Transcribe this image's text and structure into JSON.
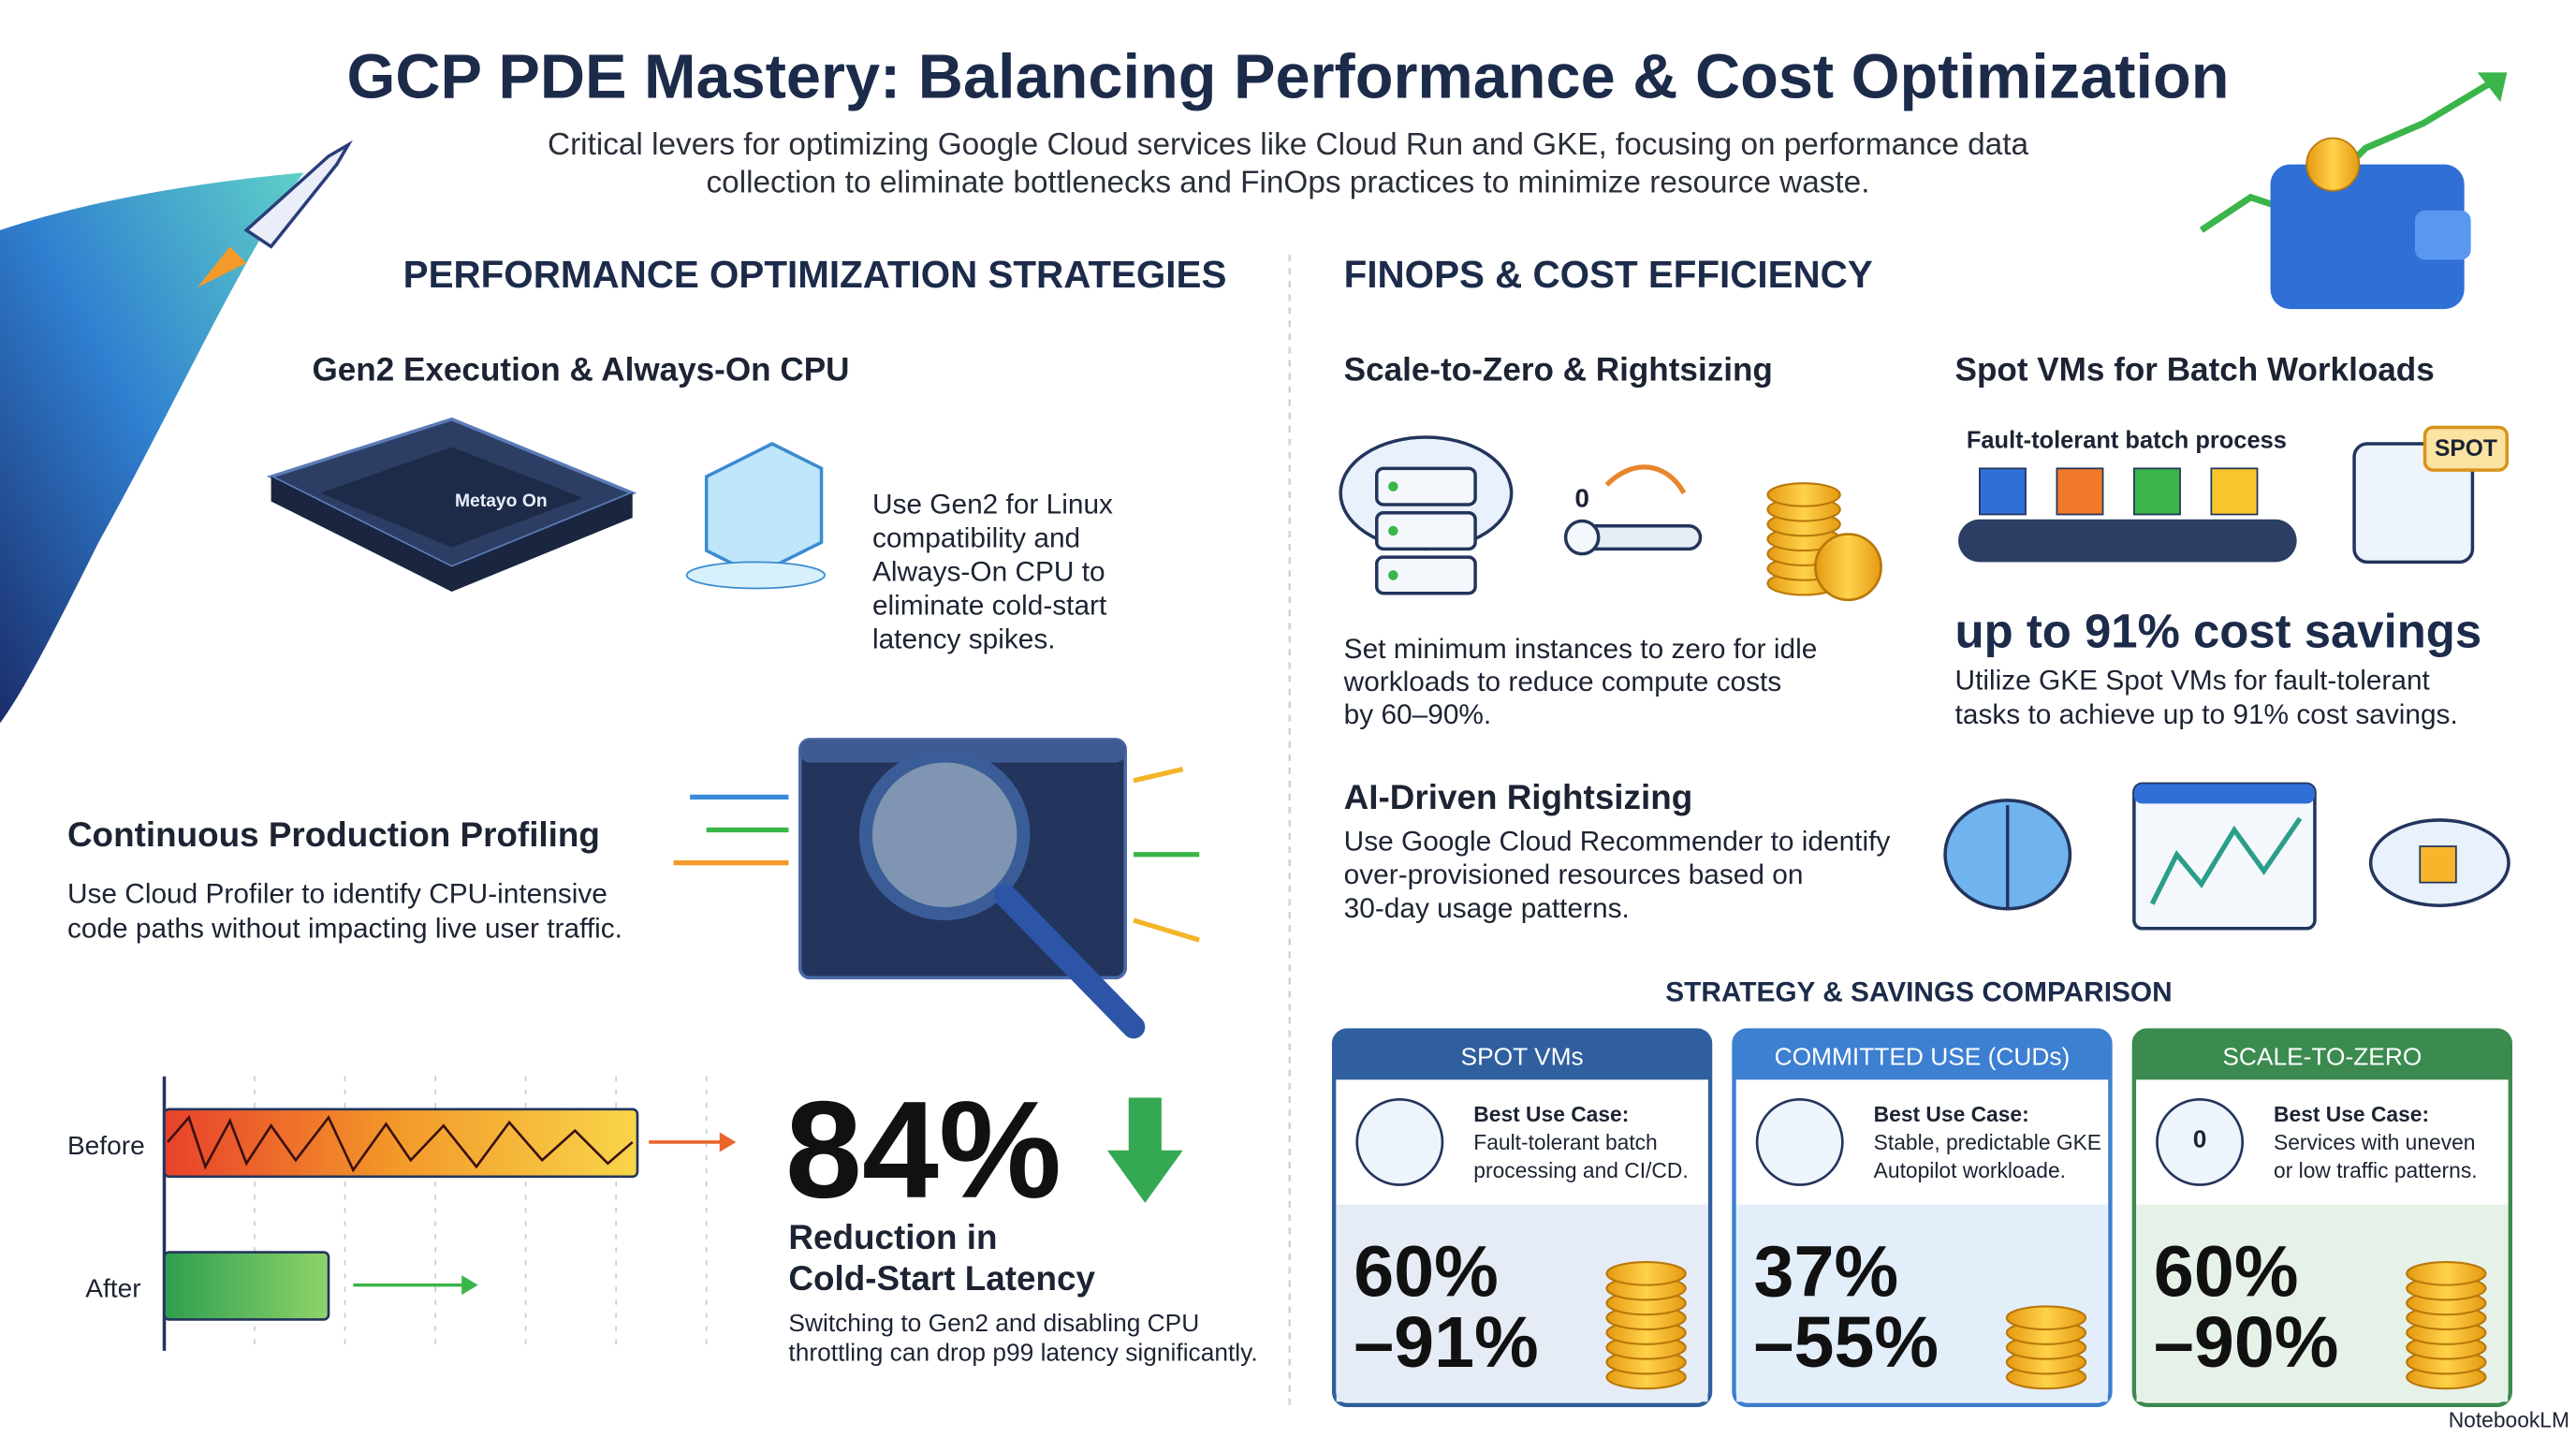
{
  "header": {
    "title": "GCP PDE Mastery: Balancing Performance & Cost Optimization",
    "subtitle": [
      "Critical levers for optimizing Google Cloud services like Cloud Run and GKE, focusing on performance data",
      "collection to eliminate bottlenecks and FinOps practices to minimize resource waste."
    ]
  },
  "performance": {
    "heading": "PERFORMANCE OPTIMIZATION STRATEGIES",
    "gen2": {
      "title": "Gen2 Execution & Always-On CPU",
      "chip_label": "Metayo On",
      "text": [
        "Use Gen2 for Linux",
        "compatibility and",
        "Always-On CPU to",
        "eliminate cold-start",
        "latency spikes."
      ]
    },
    "profiling": {
      "title": "Continuous Production Profiling",
      "text": [
        "Use Cloud Profiler to identify CPU-intensive",
        "code paths without impacting live user traffic."
      ]
    },
    "latency": {
      "before": "Before",
      "after": "After",
      "stat": "84%",
      "caption": [
        "Reduction in",
        "Cold-Start Latency"
      ],
      "text": [
        "Switching to Gen2 and disabling CPU",
        "throttling can drop p99 latency significantly."
      ]
    }
  },
  "finops": {
    "heading": "FINOPS & COST EFFICIENCY",
    "scale_to_zero": {
      "title": "Scale-to-Zero & Rightsizing",
      "icon_label": "0",
      "text": [
        "Set minimum instances to zero for idle",
        "workloads to reduce compute costs",
        "by 60–90%."
      ]
    },
    "spot": {
      "title": "Spot VMs for Batch Workloads",
      "diagram_label": "Fault-tolerant batch process",
      "badge": "SPOT",
      "stat": "up to 91% cost savings",
      "text": [
        "Utilize GKE Spot VMs for fault-tolerant",
        "tasks to achieve up to 91% cost savings."
      ]
    },
    "ai": {
      "title": "AI-Driven Rightsizing",
      "text": [
        "Use Google Cloud Recommender to identify",
        "over-provisioned resources based on",
        "30-day usage patterns."
      ]
    },
    "comparison": {
      "title": "STRATEGY & SAVINGS COMPARISON",
      "cards": [
        {
          "name": "SPOT VMs",
          "use_label": "Best Use Case:",
          "use": [
            "Fault-tolerant batch",
            "processing and CI/CD."
          ],
          "range": [
            "60%",
            "–91%"
          ]
        },
        {
          "name": "COMMITTED USE (CUDs)",
          "use_label": "Best Use Case:",
          "use": [
            "Stable, predictable GKE",
            "Autopilot workloade."
          ],
          "range": [
            "37%",
            "–55%"
          ]
        },
        {
          "name": "SCALE-TO-ZERO",
          "icon_label": "0",
          "use_label": "Best Use Case:",
          "use": [
            "Services with uneven",
            "or low traffic patterns."
          ],
          "range": [
            "60%",
            "–90%"
          ]
        }
      ]
    }
  },
  "footer": {
    "brand": "NotebookLM"
  }
}
